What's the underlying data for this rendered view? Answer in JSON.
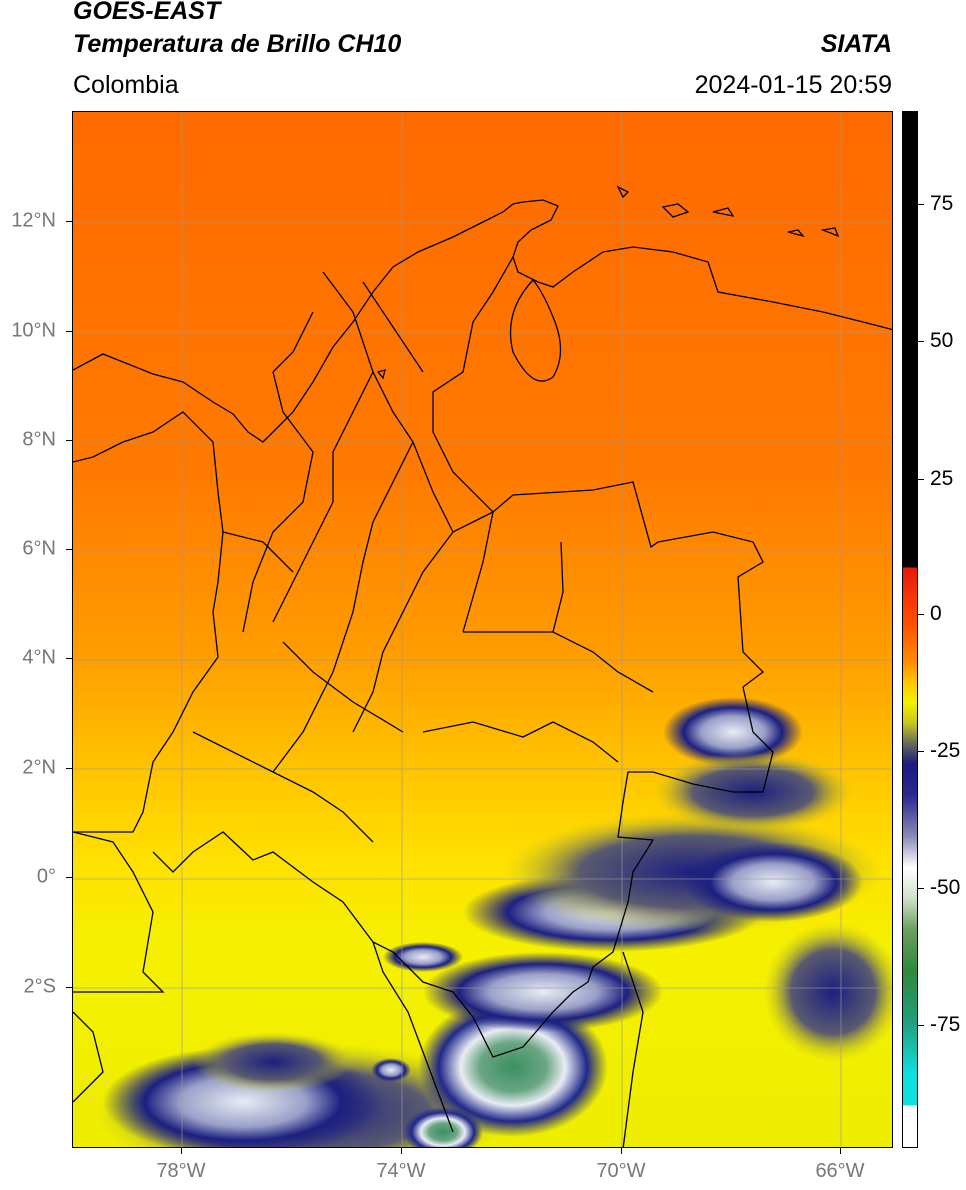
{
  "header": {
    "satellite": "GOES-EAST",
    "product": "Temperatura de Brillo CH10",
    "brand": "SIATA",
    "region": "Colombia",
    "datetime": "2024-01-15 20:59"
  },
  "axes": {
    "lat_labels": [
      "12°N",
      "10°N",
      "8°N",
      "6°N",
      "4°N",
      "2°N",
      "0°",
      "2°S"
    ],
    "lon_labels": [
      "78°W",
      "74°W",
      "70°W",
      "66°W"
    ]
  },
  "colorbar": {
    "labels": [
      "75",
      "50",
      "25",
      "0",
      "-25",
      "-50",
      "-75"
    ],
    "colors": {
      "black": "#000000",
      "red": "#e8190a",
      "orange": "#ff7a00",
      "yellow": "#f2f200",
      "navy": "#1a1a80",
      "white": "#ffffff",
      "green": "#2e8a3c",
      "cyan": "#10e0e0"
    }
  },
  "map_colors": {
    "north": "#ff6a00",
    "mid": "#ff9a00",
    "south": "#ffd800",
    "far_south": "#f5f000",
    "cloud_dark": "#1c2080",
    "cloud_light": "#e8ecf4",
    "cloud_core": "#3a8e5c"
  }
}
